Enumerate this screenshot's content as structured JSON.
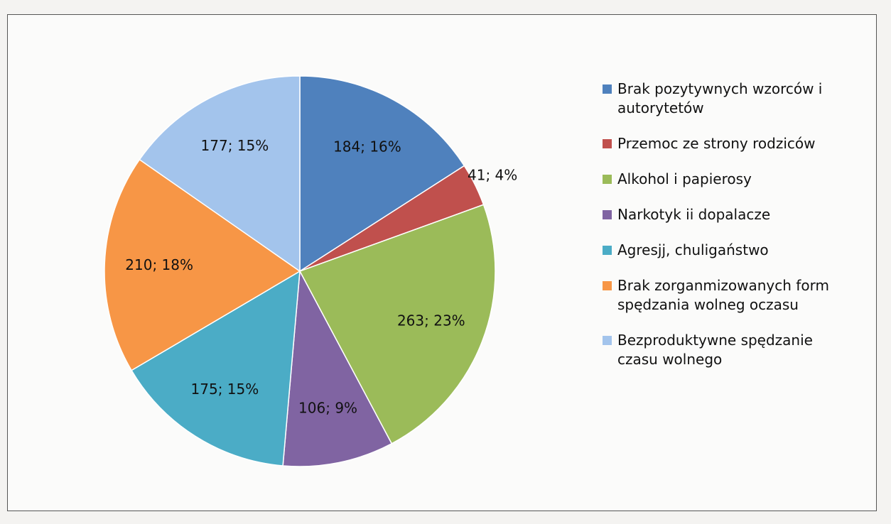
{
  "chart_data": {
    "type": "pie",
    "categories": [
      "Brak pozytywnych wzorców i autorytetów",
      "Przemoc ze strony rodziców",
      "Alkohol i papierosy",
      "Narkotyk ii dopalacze",
      "Agresjj, chuligaństwo",
      "Brak zorganmizowanych form spędzania wolneg oczasu",
      "Bezproduktywne spędzanie czasu wolnego"
    ],
    "values": [
      184,
      41,
      263,
      106,
      175,
      210,
      177
    ],
    "value_labels": [
      "184; 16%",
      "41; 4%",
      "263; 23%",
      "106; 9%",
      "175; 15%",
      "210; 18%",
      "177; 15%"
    ],
    "colors": [
      "#4f81bd",
      "#c0504d",
      "#9bbb59",
      "#8064a2",
      "#4bacc6",
      "#f79646",
      "#a3c4ec"
    ],
    "legend": "right"
  }
}
